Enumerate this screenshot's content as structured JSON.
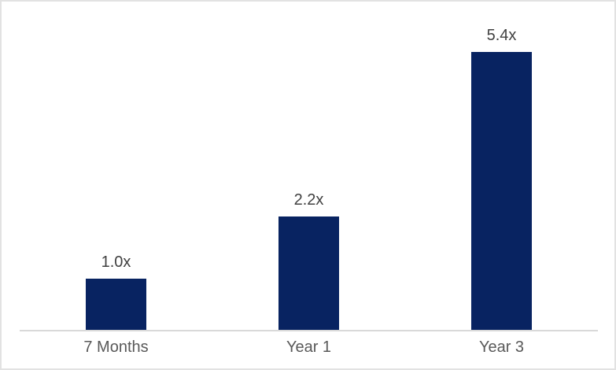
{
  "chart_data": {
    "type": "bar",
    "categories": [
      "7 Months",
      "Year 1",
      "Year 3"
    ],
    "values": [
      1.0,
      2.2,
      5.4
    ],
    "data_labels": [
      "1.0x",
      "2.2x",
      "5.4x"
    ],
    "title": "",
    "xlabel": "",
    "ylabel": "",
    "ylim": [
      0,
      5.8
    ],
    "grid": false,
    "legend": false,
    "axis_ticks_visible": false,
    "colors": {
      "bar_fill": "#082361",
      "axis_line": "#d9d9d9",
      "data_label_text": "#404040",
      "category_label_text": "#595959",
      "background": "#ffffff",
      "frame_border": "#e2e2e2"
    }
  }
}
